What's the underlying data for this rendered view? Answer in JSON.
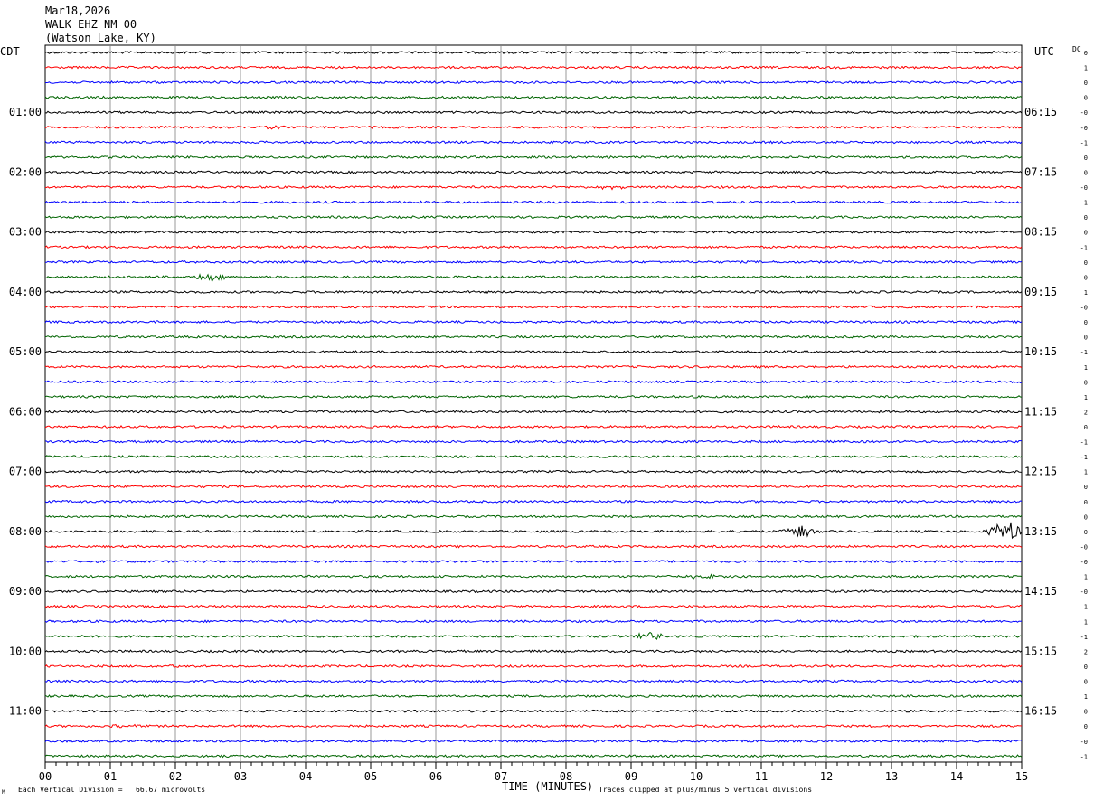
{
  "header": {
    "date": "Mar18,2026",
    "station": "WALK EHZ NM 00",
    "location": "(Watson Lake, KY)"
  },
  "left_timezone": "CDT",
  "right_timezone": "UTC",
  "dc_label": "DC",
  "footer": {
    "scale_text": "Each Vertical Division =   66.67 microvolts",
    "clip_text": "Traces clipped at plus/minus 5 vertical divisions",
    "corner_mark": "M"
  },
  "colors": {
    "black": "#000000",
    "red": "#ff0000",
    "blue": "#0000ff",
    "green": "#006400",
    "grid": "#808080"
  },
  "chart_data": {
    "type": "line",
    "title": "WALK EHZ NM 00",
    "xlabel": "TIME (MINUTES)",
    "ylabel": "",
    "x_ticks": [
      "00",
      "01",
      "02",
      "03",
      "04",
      "05",
      "06",
      "07",
      "08",
      "09",
      "10",
      "11",
      "12",
      "13",
      "14",
      "15"
    ],
    "xlim": [
      0,
      15
    ],
    "minutes_per_line": 15,
    "line_count": 48,
    "line_colors": [
      "black",
      "red",
      "blue",
      "green"
    ],
    "left_labels": [
      "01:00",
      "02:00",
      "03:00",
      "04:00",
      "05:00",
      "06:00",
      "07:00",
      "08:00",
      "09:00",
      "10:00",
      "11:00"
    ],
    "right_labels": [
      "06:15",
      "07:15",
      "08:15",
      "09:15",
      "10:15",
      "11:15",
      "12:15",
      "13:15",
      "14:15",
      "15:15",
      "16:15"
    ],
    "hour_label_lines": [
      4,
      8,
      12,
      16,
      20,
      24,
      28,
      32,
      36,
      40,
      44
    ],
    "dc_offsets": [
      "0",
      "1",
      "0",
      "0",
      "-0",
      "-0",
      "-1",
      "0",
      "0",
      "-0",
      "1",
      "0",
      "0",
      "-1",
      "0",
      "-0",
      "1",
      "-0",
      "0",
      "0",
      "-1",
      "1",
      "0",
      "1",
      "2",
      "0",
      "-1",
      "-1",
      "1",
      "0",
      "0",
      "0",
      "0",
      "-0",
      "-0",
      "1",
      "-0",
      "1",
      "1",
      "-1",
      "2",
      "0",
      "0",
      "1",
      "0",
      "0",
      "-0",
      "-1"
    ],
    "events": [
      {
        "line": 5,
        "minute": 3.5,
        "amplitude": 0.6
      },
      {
        "line": 9,
        "minute": 8.7,
        "amplitude": 0.4
      },
      {
        "line": 15,
        "minute": 2.6,
        "amplitude": 1.2
      },
      {
        "line": 32,
        "minute": 11.6,
        "amplitude": 1.6
      },
      {
        "line": 32,
        "minute": 14.75,
        "amplitude": 2.8
      },
      {
        "line": 35,
        "minute": 10.1,
        "amplitude": 0.5
      },
      {
        "line": 39,
        "minute": 9.3,
        "amplitude": 0.9
      },
      {
        "line": 41,
        "minute": 1.9,
        "amplitude": 0.5
      },
      {
        "line": 45,
        "minute": 1.3,
        "amplitude": 0.5
      }
    ]
  }
}
